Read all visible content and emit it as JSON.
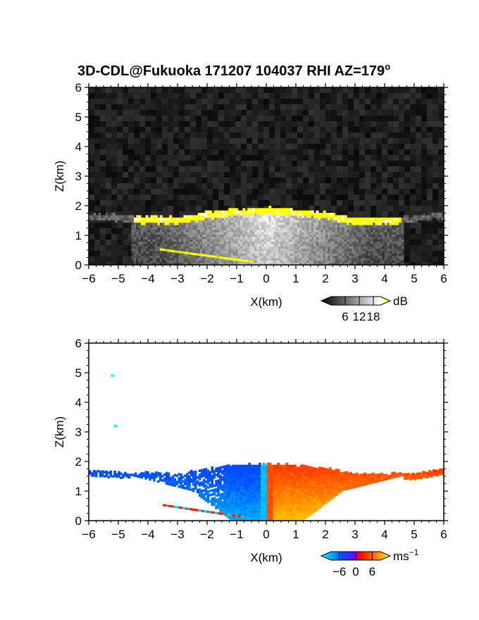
{
  "title": "3D-CDL@Fukuoka 171207 104037 RHI AZ=179",
  "title_sup": "o",
  "chart_data": [
    {
      "type": "heatmap",
      "name": "reflectivity",
      "xlabel": "X(km)",
      "ylabel": "Z(km)",
      "xlim": [
        -6,
        6
      ],
      "ylim": [
        0,
        6
      ],
      "xticks": [
        -6,
        -5,
        -4,
        -3,
        -2,
        -1,
        0,
        1,
        2,
        3,
        4,
        5,
        6
      ],
      "yticks": [
        0,
        1,
        2,
        3,
        4,
        5,
        6
      ],
      "colorbar": {
        "unit": "dB",
        "ticks": [
          6,
          12,
          18
        ],
        "range": [
          0,
          21
        ],
        "colors": [
          "#000000",
          "#ffffff",
          "#ffff00"
        ]
      },
      "layer_top_km": [
        [
          -6,
          1.7
        ],
        [
          -5,
          1.65
        ],
        [
          -4,
          1.6
        ],
        [
          -3,
          1.55
        ],
        [
          -2,
          1.75
        ],
        [
          -1,
          1.85
        ],
        [
          0,
          1.9
        ],
        [
          1,
          1.85
        ],
        [
          2,
          1.75
        ],
        [
          3,
          1.55
        ],
        [
          4,
          1.55
        ],
        [
          5,
          1.6
        ],
        [
          6,
          1.75
        ]
      ]
    },
    {
      "type": "heatmap",
      "name": "doppler-velocity",
      "xlabel": "X(km)",
      "ylabel": "Z(km)",
      "xlim": [
        -6,
        6
      ],
      "ylim": [
        0,
        6
      ],
      "xticks": [
        -6,
        -5,
        -4,
        -3,
        -2,
        -1,
        0,
        1,
        2,
        3,
        4,
        5,
        6
      ],
      "yticks": [
        0,
        1,
        2,
        3,
        4,
        5,
        6
      ],
      "colorbar": {
        "unit": "ms",
        "unit_sup": "−1",
        "ticks": [
          -6,
          0,
          6
        ],
        "range": [
          -9,
          9
        ],
        "colors": [
          "#00ffff",
          "#0050ff",
          "#ff0000",
          "#ffff00"
        ]
      },
      "outliers": [
        [
          -5.2,
          4.9
        ],
        [
          -5.1,
          3.2
        ]
      ]
    }
  ]
}
